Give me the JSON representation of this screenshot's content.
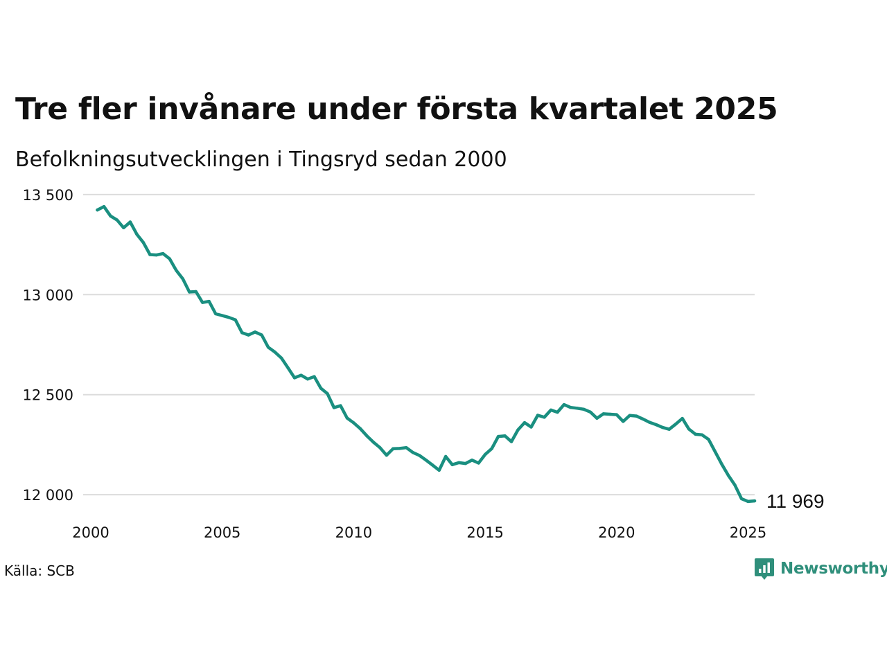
{
  "title": "Tre fler invånare under första kvartalet 2025",
  "subtitle": "Befolkningsutvecklingen i Tingsryd sedan 2000",
  "source": "Källa: SCB",
  "brand": {
    "name": "Newsworthy",
    "icon": "newsworthy-logo-icon",
    "color": "#2f8f7b"
  },
  "colors": {
    "line": "#1a8f80",
    "grid": "#dcdcdc"
  },
  "chart_data": {
    "type": "line",
    "title": "Tre fler invånare under första kvartalet 2025",
    "subtitle": "Befolkningsutvecklingen i Tingsryd sedan 2000",
    "xlabel": "",
    "ylabel": "",
    "xlim": [
      2000,
      2025.25
    ],
    "ylim": [
      11900,
      13600
    ],
    "grid": true,
    "x_ticks": [
      {
        "value": 2000,
        "label": "2000"
      },
      {
        "value": 2005,
        "label": "2005"
      },
      {
        "value": 2010,
        "label": "2010"
      },
      {
        "value": 2015,
        "label": "2015"
      },
      {
        "value": 2020,
        "label": "2020"
      },
      {
        "value": 2025,
        "label": "2025"
      }
    ],
    "y_ticks": [
      {
        "value": 12000,
        "label": "12 000"
      },
      {
        "value": 12500,
        "label": "12 500"
      },
      {
        "value": 13000,
        "label": "13 000"
      },
      {
        "value": 13500,
        "label": "13 500"
      }
    ],
    "end_label": "11 969",
    "series": [
      {
        "x": [
          2000.25,
          2000.5,
          2000.75,
          2001.0,
          2001.25,
          2001.5,
          2001.75,
          2002.0,
          2002.25,
          2002.5,
          2002.75,
          2003.0,
          2003.25,
          2003.5,
          2003.75,
          2004.0,
          2004.25,
          2004.5,
          2004.75,
          2005.0,
          2005.25,
          2005.5,
          2005.75,
          2006.0,
          2006.25,
          2006.5,
          2006.75,
          2007.0,
          2007.25,
          2007.5,
          2007.75,
          2008.0,
          2008.25,
          2008.5,
          2008.75,
          2009.0,
          2009.25,
          2009.5,
          2009.75,
          2010.0,
          2010.25,
          2010.5,
          2010.75,
          2011.0,
          2011.25,
          2011.5,
          2011.75,
          2012.0,
          2012.25,
          2012.5,
          2012.75,
          2013.0,
          2013.25,
          2013.5,
          2013.75,
          2014.0,
          2014.25,
          2014.5,
          2014.75,
          2015.0,
          2015.25,
          2015.5,
          2015.75,
          2016.0,
          2016.25,
          2016.5,
          2016.75,
          2017.0,
          2017.25,
          2017.5,
          2017.75,
          2018.0,
          2018.25,
          2018.5,
          2018.75,
          2019.0,
          2019.25,
          2019.5,
          2019.75,
          2020.0,
          2020.25,
          2020.5,
          2020.75,
          2021.0,
          2021.25,
          2021.5,
          2021.75,
          2022.0,
          2022.25,
          2022.5,
          2022.75,
          2023.0,
          2023.25,
          2023.5,
          2023.75,
          2024.0,
          2024.25,
          2024.5,
          2024.75,
          2025.0,
          2025.25
        ],
        "values": [
          13423,
          13440,
          13393,
          13373,
          13334,
          13363,
          13302,
          13260,
          13200,
          13198,
          13205,
          13179,
          13121,
          13079,
          13013,
          13015,
          12961,
          12966,
          12904,
          12895,
          12886,
          12874,
          12810,
          12798,
          12813,
          12798,
          12737,
          12713,
          12683,
          12634,
          12584,
          12597,
          12578,
          12590,
          12532,
          12505,
          12435,
          12445,
          12383,
          12359,
          12330,
          12294,
          12262,
          12235,
          12197,
          12230,
          12231,
          12235,
          12211,
          12196,
          12173,
          12148,
          12122,
          12191,
          12150,
          12160,
          12156,
          12173,
          12158,
          12201,
          12230,
          12291,
          12294,
          12265,
          12324,
          12360,
          12338,
          12397,
          12387,
          12423,
          12412,
          12450,
          12436,
          12432,
          12427,
          12413,
          12382,
          12404,
          12402,
          12400,
          12366,
          12396,
          12393,
          12378,
          12362,
          12350,
          12336,
          12327,
          12353,
          12381,
          12328,
          12302,
          12299,
          12276,
          12214,
          12152,
          12096,
          12048,
          11980,
          11966,
          11969
        ]
      }
    ]
  }
}
